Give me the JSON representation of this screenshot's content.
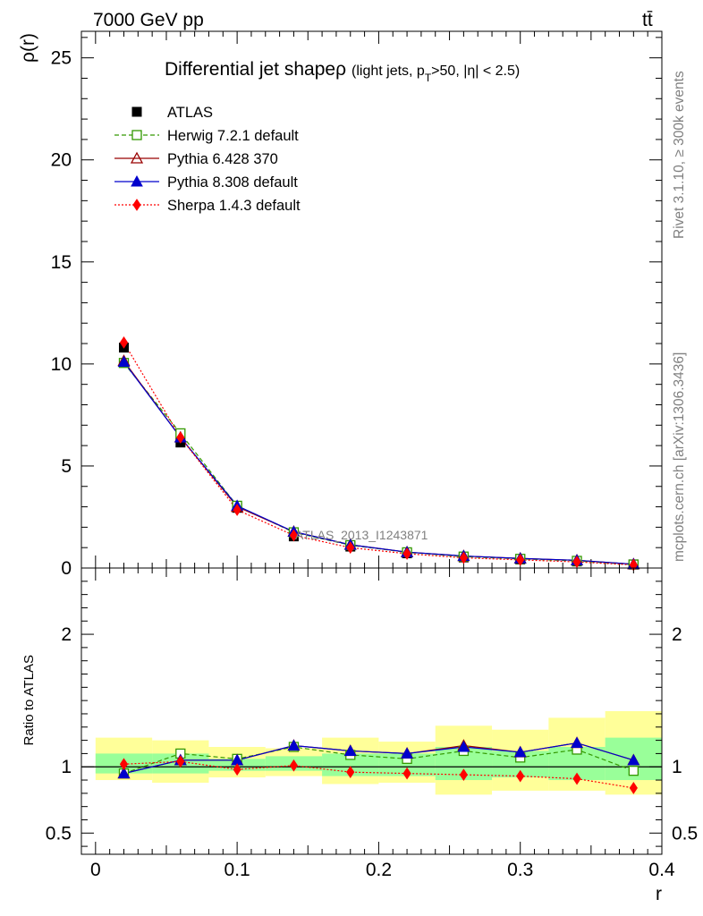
{
  "header": {
    "energy_label": "7000 GeV pp",
    "process_label": "tt̄",
    "rivet_label": "Rivet 3.1.10, ≥ 300k events",
    "source_label": "mcplots.cern.ch [arXiv:1306.3436]",
    "analysis_label": "ATLAS_2013_I1243871"
  },
  "chart_data": {
    "type": "line",
    "title": "Differential jet shape",
    "title_symbol": "ρ",
    "title_cut_open": "(light jets, p",
    "title_cut_sub": "T",
    "title_cut_close": ">50, |η| < 2.5)",
    "xlabel": "r",
    "ylabel": "ρ(r)",
    "ratio_ylabel": "Ratio to ATLAS",
    "xlim": [
      -0.01,
      0.4
    ],
    "ylim": [
      0,
      26.3
    ],
    "ratio_ylim": [
      0.34,
      2.5
    ],
    "x_ticks": [
      "0",
      "0.1",
      "0.2",
      "0.3",
      "0.4"
    ],
    "y_ticks": [
      "0",
      "5",
      "10",
      "15",
      "20",
      "25"
    ],
    "ratio_ticks": [
      "0.5",
      "1",
      "2"
    ],
    "x": [
      0.02,
      0.06,
      0.1,
      0.14,
      0.18,
      0.22,
      0.26,
      0.3,
      0.34,
      0.38
    ],
    "bin_edges": [
      0.0,
      0.04,
      0.08,
      0.12,
      0.16,
      0.2,
      0.24,
      0.28,
      0.32,
      0.36,
      0.4
    ],
    "data": {
      "name": "ATLAS",
      "values": [
        10.8,
        6.15,
        2.95,
        1.55,
        1.05,
        0.72,
        0.52,
        0.42,
        0.32,
        0.18
      ],
      "band_inner": [
        [
          0.95,
          1.1
        ],
        [
          0.95,
          1.1
        ],
        [
          0.97,
          1.06
        ],
        [
          0.97,
          1.08
        ],
        [
          0.93,
          1.1
        ],
        [
          0.93,
          1.1
        ],
        [
          0.9,
          1.15
        ],
        [
          0.92,
          1.12
        ],
        [
          0.9,
          1.15
        ],
        [
          0.9,
          1.22
        ]
      ],
      "band_outer": [
        [
          0.9,
          1.22
        ],
        [
          0.88,
          1.2
        ],
        [
          0.92,
          1.15
        ],
        [
          0.93,
          1.14
        ],
        [
          0.87,
          1.22
        ],
        [
          0.88,
          1.19
        ],
        [
          0.79,
          1.31
        ],
        [
          0.82,
          1.28
        ],
        [
          0.82,
          1.37
        ],
        [
          0.79,
          1.42
        ]
      ]
    },
    "series": [
      {
        "name": "Herwig 7.2.1 default",
        "color": "#339900",
        "marker": "open-square",
        "dash": "dashed",
        "values": [
          10.05,
          6.6,
          3.05,
          1.75,
          1.12,
          0.77,
          0.56,
          0.45,
          0.35,
          0.17
        ],
        "ratio": [
          0.95,
          1.1,
          1.06,
          1.15,
          1.09,
          1.06,
          1.12,
          1.07,
          1.13,
          0.97
        ]
      },
      {
        "name": "Pythia 6.428 370",
        "color": "#990000",
        "marker": "open-triangle",
        "dash": "solid",
        "values": [
          10.15,
          6.4,
          3.0,
          1.78,
          1.14,
          0.78,
          0.59,
          0.47,
          0.38,
          0.19
        ],
        "ratio": [
          0.95,
          1.05,
          1.05,
          1.16,
          1.12,
          1.1,
          1.16,
          1.11,
          1.18,
          1.05
        ]
      },
      {
        "name": "Pythia 8.308 default",
        "color": "#0000cc",
        "marker": "filled-triangle",
        "dash": "solid",
        "values": [
          10.1,
          6.4,
          3.05,
          1.78,
          1.14,
          0.78,
          0.59,
          0.47,
          0.38,
          0.19
        ],
        "ratio": [
          0.95,
          1.05,
          1.05,
          1.16,
          1.12,
          1.1,
          1.15,
          1.11,
          1.18,
          1.05
        ]
      },
      {
        "name": "Sherpa 1.4.3 default",
        "color": "#ff0000",
        "marker": "filled-diamond",
        "dash": "dotted",
        "values": [
          11.05,
          6.4,
          2.85,
          1.6,
          1.0,
          0.7,
          0.5,
          0.4,
          0.3,
          0.15
        ],
        "ratio": [
          1.02,
          1.04,
          0.98,
          1.01,
          0.96,
          0.95,
          0.94,
          0.93,
          0.91,
          0.84
        ]
      }
    ],
    "legend_position": "top-left"
  }
}
